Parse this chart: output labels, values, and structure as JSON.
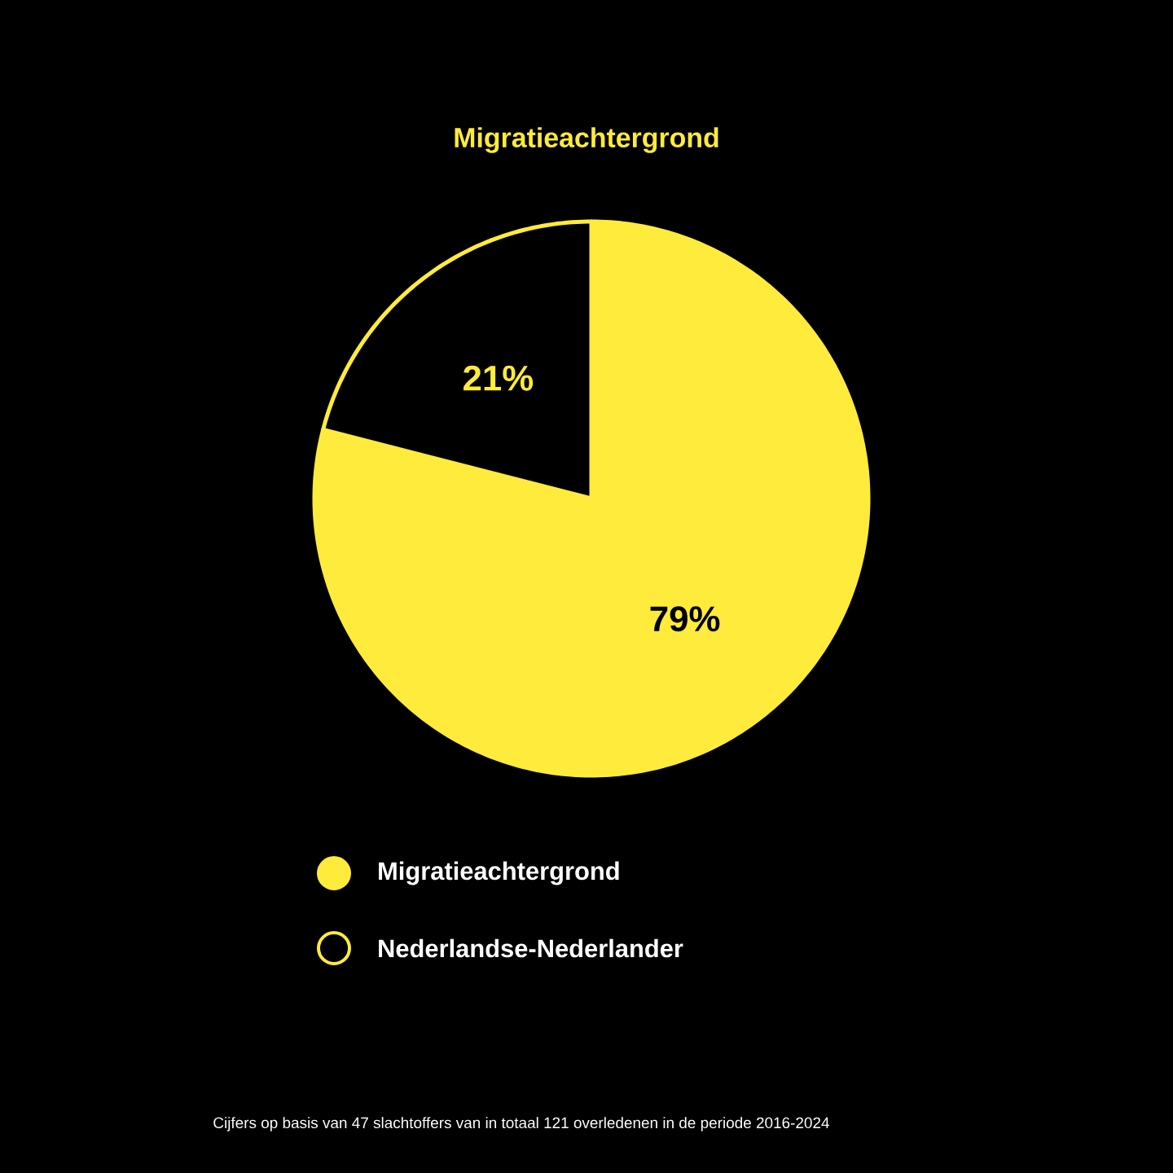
{
  "chart_data": {
    "type": "pie",
    "title": "Migratieachtergrond",
    "categories": [
      "Migratieachtergrond",
      "Nederlandse-Nederlander"
    ],
    "values": [
      79,
      21
    ],
    "colors": [
      "#ffeb3b",
      "#000000"
    ],
    "value_labels": [
      "79%",
      "21%"
    ],
    "legend": "bottom",
    "annotations": [
      "Cijfers op basis van 47 slachtoffers van in totaal 121 overledenen in de periode 2016-2024"
    ]
  }
}
